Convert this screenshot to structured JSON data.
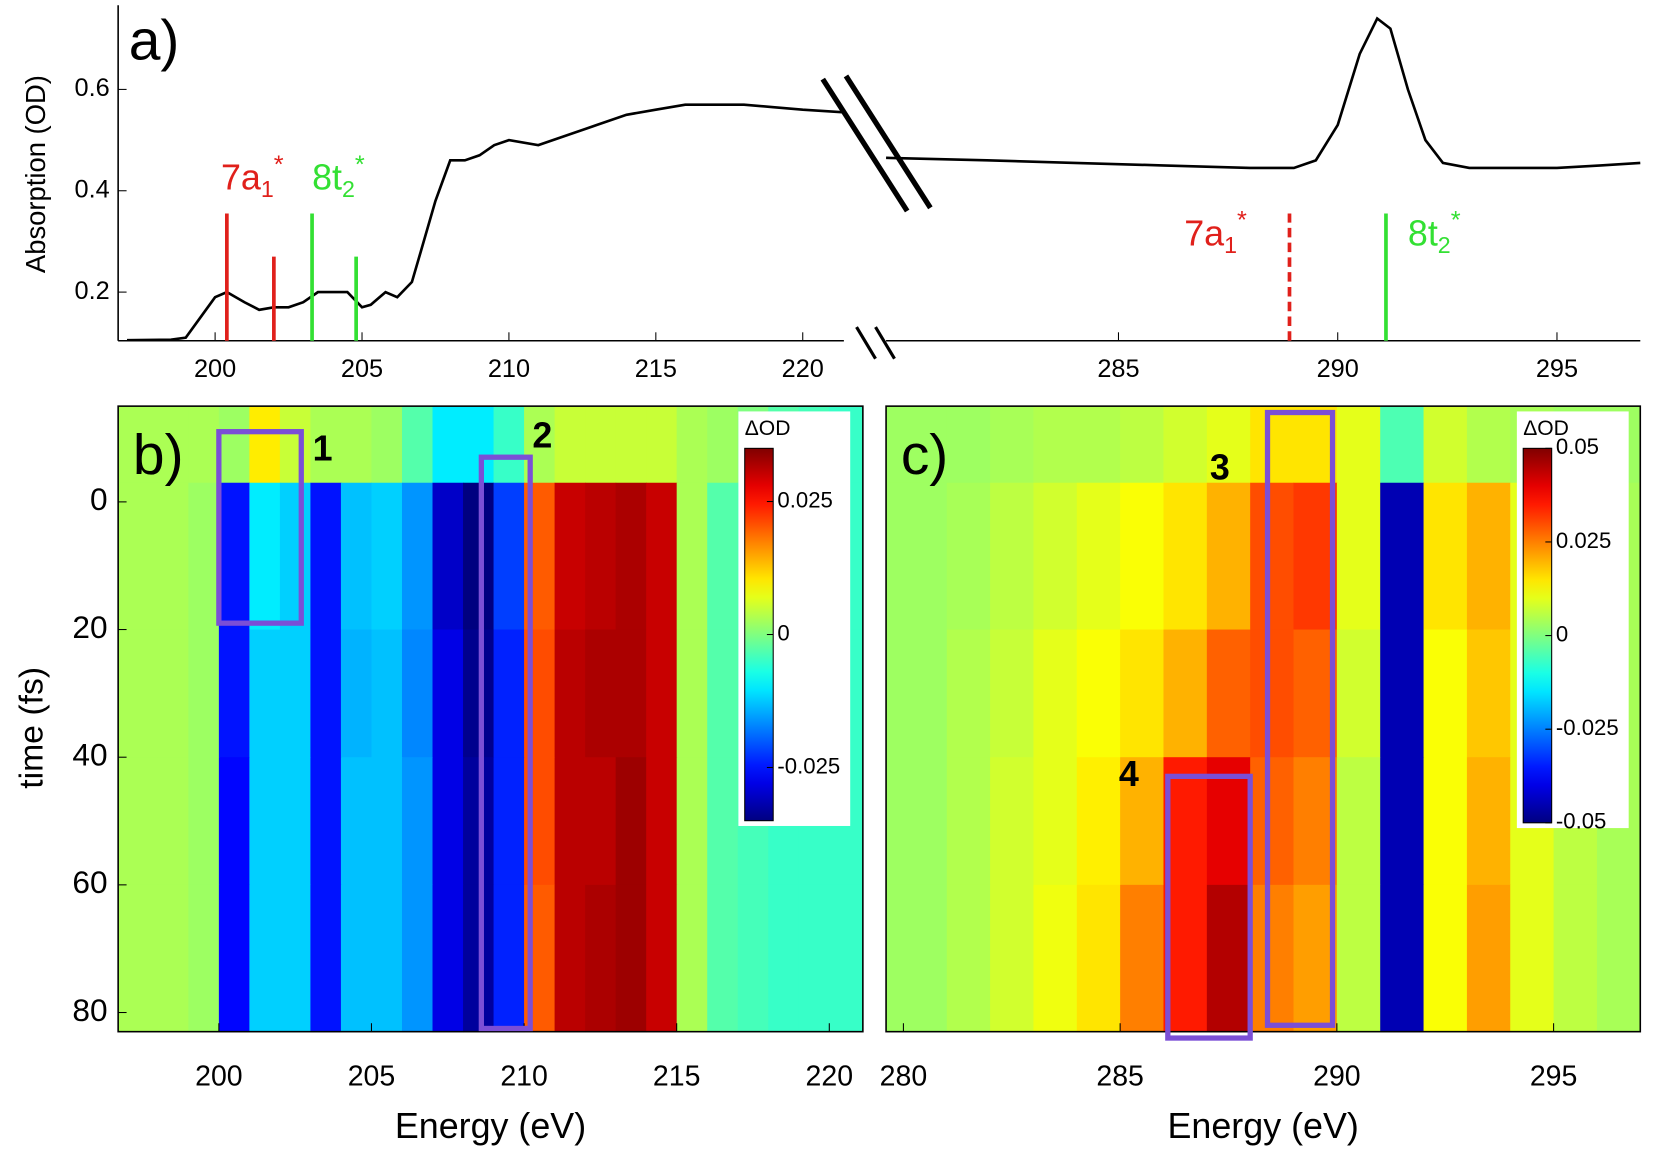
{
  "chart_data": [
    {
      "type": "broken-line",
      "panel_label": "a)",
      "ylabel": "Absorption (OD)",
      "color": "#000000",
      "ylim": [
        0.104,
        0.766
      ],
      "yticks": [
        0.2,
        0.4,
        0.6
      ],
      "panels": [
        {
          "xlim": [
            196.7,
            221.4
          ],
          "xticks": [
            200,
            205,
            210,
            215,
            220
          ],
          "x": [
            197,
            198.5,
            199,
            199.5,
            200,
            200.4,
            201,
            201.5,
            202,
            202.5,
            203,
            203.5,
            204,
            204.5,
            205,
            205.3,
            205.8,
            206.2,
            206.7,
            207,
            207.5,
            208,
            208.5,
            209,
            209.5,
            210,
            211,
            212,
            213,
            214,
            215,
            216,
            217,
            218,
            219,
            220,
            221.4
          ],
          "values": [
            0.105,
            0.106,
            0.11,
            0.15,
            0.19,
            0.2,
            0.18,
            0.165,
            0.17,
            0.17,
            0.18,
            0.2,
            0.2,
            0.2,
            0.17,
            0.175,
            0.2,
            0.19,
            0.22,
            0.28,
            0.38,
            0.46,
            0.46,
            0.47,
            0.49,
            0.5,
            0.49,
            0.51,
            0.53,
            0.55,
            0.56,
            0.57,
            0.57,
            0.57,
            0.565,
            0.56,
            0.555
          ]
        },
        {
          "xlim": [
            279.7,
            296.9
          ],
          "xticks": [
            285,
            290,
            295
          ],
          "x": [
            279.7,
            282,
            284,
            286,
            288,
            289,
            289.5,
            290,
            290.5,
            290.9,
            291.2,
            291.6,
            292,
            292.4,
            293,
            294,
            295,
            296,
            296.9
          ],
          "values": [
            0.465,
            0.46,
            0.455,
            0.45,
            0.445,
            0.445,
            0.46,
            0.53,
            0.67,
            0.74,
            0.72,
            0.6,
            0.5,
            0.455,
            0.445,
            0.445,
            0.445,
            0.45,
            0.455
          ]
        }
      ],
      "sticks": [
        {
          "panel": 0,
          "x": 200.4,
          "height": 0.355,
          "color": "#e0201b",
          "dashed": false
        },
        {
          "panel": 0,
          "x": 202.0,
          "height": 0.27,
          "color": "#e0201b",
          "dashed": false
        },
        {
          "panel": 0,
          "x": 203.3,
          "height": 0.355,
          "color": "#33e033",
          "dashed": false
        },
        {
          "panel": 0,
          "x": 204.8,
          "height": 0.27,
          "color": "#33e033",
          "dashed": false
        },
        {
          "panel": 1,
          "x": 288.9,
          "height": 0.355,
          "color": "#e0201b",
          "dashed": true
        },
        {
          "panel": 1,
          "x": 291.1,
          "height": 0.355,
          "color": "#33e033",
          "dashed": false
        }
      ],
      "annotations": [
        {
          "panel": 0,
          "x": 200.2,
          "y": 0.42,
          "text": "7a",
          "sub": "1",
          "sup": "*",
          "color": "#e0201b"
        },
        {
          "panel": 0,
          "x": 203.3,
          "y": 0.42,
          "text": "8t",
          "sub": "2",
          "sup": "*",
          "color": "#33e033"
        },
        {
          "panel": 1,
          "x": 286.5,
          "y": 0.31,
          "text": "7a",
          "sub": "1",
          "sup": "*",
          "color": "#e0201b"
        },
        {
          "panel": 1,
          "x": 291.6,
          "y": 0.31,
          "text": "8t",
          "sub": "2",
          "sup": "*",
          "color": "#33e033"
        }
      ]
    },
    {
      "type": "heatmap",
      "panel_label": "b)",
      "xlabel": "Energy (eV)",
      "ylabel": "time (fs)",
      "colorbar_label": "ΔOD",
      "xlim": [
        196.7,
        221.1
      ],
      "xticks": [
        200,
        205,
        210,
        215,
        220
      ],
      "ylim": [
        83,
        -15
      ],
      "yticks": [
        0,
        20,
        40,
        60,
        80
      ],
      "clim": [
        -0.035,
        0.035
      ],
      "cticks": [
        -0.025,
        0,
        0.025
      ],
      "colormap": "jet",
      "x_edges": [
        196.7,
        198,
        199,
        200,
        201,
        202,
        203,
        204,
        205,
        206,
        207,
        208,
        209,
        210,
        211,
        212,
        213,
        214,
        215,
        216,
        217,
        218,
        219,
        220,
        221.1
      ],
      "y_edges": [
        -15,
        -3,
        20,
        40,
        60,
        83
      ],
      "z": [
        [
          0.003,
          0.003,
          0.003,
          0.002,
          0.01,
          0.005,
          0.003,
          0.003,
          0.002,
          -0.003,
          -0.01,
          -0.01,
          -0.005,
          0.003,
          0.005,
          0.005,
          0.005,
          0.005,
          0.003,
          0.002,
          0,
          -0.003,
          -0.004,
          -0.005
        ],
        [
          0.003,
          0.003,
          0.002,
          -0.025,
          -0.01,
          -0.012,
          -0.025,
          -0.013,
          -0.012,
          -0.016,
          -0.03,
          -0.035,
          -0.022,
          0.02,
          0.03,
          0.031,
          0.032,
          0.03,
          0.003,
          -0.003,
          -0.004,
          -0.005,
          -0.005,
          -0.005
        ],
        [
          0.003,
          0.003,
          0.002,
          -0.025,
          -0.012,
          -0.012,
          -0.025,
          -0.014,
          -0.013,
          -0.017,
          -0.028,
          -0.034,
          -0.024,
          0.021,
          0.031,
          0.032,
          0.032,
          0.03,
          0.003,
          -0.003,
          -0.004,
          -0.005,
          -0.005,
          -0.005
        ],
        [
          0.003,
          0.003,
          0.002,
          -0.026,
          -0.012,
          -0.012,
          -0.025,
          -0.013,
          -0.013,
          -0.016,
          -0.028,
          -0.033,
          -0.024,
          0.021,
          0.031,
          0.031,
          0.033,
          0.03,
          0.003,
          -0.003,
          -0.004,
          -0.005,
          -0.005,
          -0.005
        ],
        [
          0.003,
          0.003,
          0.002,
          -0.026,
          -0.012,
          -0.012,
          -0.025,
          -0.013,
          -0.013,
          -0.016,
          -0.028,
          -0.033,
          -0.024,
          0.02,
          0.031,
          0.032,
          0.033,
          0.03,
          0.003,
          -0.003,
          -0.004,
          -0.005,
          -0.005,
          -0.005
        ]
      ],
      "boxes": [
        {
          "label": "1",
          "x": [
            200,
            202.7
          ],
          "y": [
            -11,
            19
          ],
          "label_x": 203.4,
          "label_y": -8
        },
        {
          "label": "2",
          "x": [
            208.6,
            210.2
          ],
          "y": [
            -7,
            82.5
          ],
          "label_x": 210.6,
          "label_y": -10
        }
      ]
    },
    {
      "type": "heatmap",
      "panel_label": "c)",
      "xlabel": "Energy (eV)",
      "colorbar_label": "ΔOD",
      "xlim": [
        279.6,
        297
      ],
      "xticks": [
        280,
        285,
        290,
        295
      ],
      "ylim": [
        83,
        -15
      ],
      "clim": [
        -0.05,
        0.05
      ],
      "cticks": [
        -0.05,
        -0.025,
        0,
        0.025,
        0.05
      ],
      "colormap": "jet",
      "x_edges": [
        279.6,
        281,
        282,
        283,
        284,
        285,
        286,
        287,
        288,
        289,
        290,
        291,
        292,
        293,
        294,
        295,
        296,
        297
      ],
      "y_edges": [
        -15,
        -3,
        20,
        40,
        60,
        83
      ],
      "z": [
        [
          0.003,
          0.003,
          0.004,
          0.005,
          0.005,
          0.006,
          0.008,
          0.01,
          0.015,
          0.015,
          0.01,
          -0.005,
          0.008,
          0.005,
          0.004,
          0.003,
          0.003
        ],
        [
          0.003,
          0.004,
          0.006,
          0.008,
          0.01,
          0.012,
          0.015,
          0.02,
          0.03,
          0.032,
          0.01,
          -0.045,
          0.015,
          0.02,
          0.01,
          0.006,
          0.004
        ],
        [
          0.003,
          0.005,
          0.007,
          0.01,
          0.012,
          0.015,
          0.02,
          0.028,
          0.03,
          0.028,
          0.008,
          -0.045,
          0.012,
          0.018,
          0.01,
          0.006,
          0.004
        ],
        [
          0.003,
          0.005,
          0.008,
          0.01,
          0.014,
          0.02,
          0.035,
          0.04,
          0.028,
          0.025,
          0.006,
          -0.045,
          0.012,
          0.02,
          0.01,
          0.006,
          0.004
        ],
        [
          0.003,
          0.005,
          0.008,
          0.011,
          0.015,
          0.025,
          0.035,
          0.045,
          0.025,
          0.022,
          0.006,
          -0.045,
          0.012,
          0.022,
          0.01,
          0.006,
          0.004
        ]
      ],
      "boxes": [
        {
          "label": "3",
          "x": [
            288.4,
            289.9
          ],
          "y": [
            -14,
            82
          ],
          "label_x": 287.3,
          "label_y": -5
        },
        {
          "label": "4",
          "x": [
            286.1,
            288
          ],
          "y": [
            43,
            84
          ],
          "label_x": 285.2,
          "label_y": 43
        }
      ]
    }
  ]
}
